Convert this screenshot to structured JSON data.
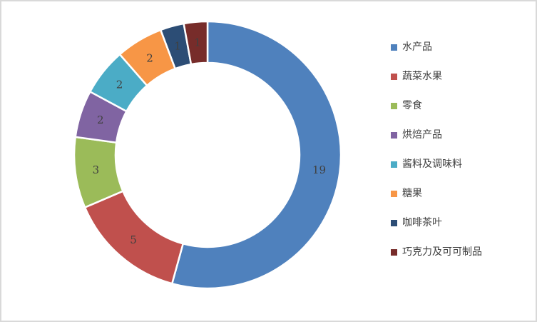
{
  "frame": {
    "border_color": "#d9d9d9",
    "background": "#ffffff"
  },
  "chart_data": {
    "type": "pie",
    "subtype": "donut",
    "title": "",
    "legend_position": "right",
    "direction": "clockwise",
    "start_angle_deg": 0,
    "inner_radius_ratio": 0.69,
    "total": 35,
    "label_color": "#404040",
    "legend_text_color": "#3f3f3f",
    "segments": [
      {
        "label": "水产品",
        "value": 19,
        "color": "#4F81BD"
      },
      {
        "label": "蔬菜水果",
        "value": 5,
        "color": "#C0504D"
      },
      {
        "label": "零食",
        "value": 3,
        "color": "#9BBB59"
      },
      {
        "label": "烘焙产品",
        "value": 2,
        "color": "#8064A2"
      },
      {
        "label": "酱料及调味料",
        "value": 2,
        "color": "#4BACC6"
      },
      {
        "label": "糖果",
        "value": 2,
        "color": "#F79646"
      },
      {
        "label": "咖啡茶叶",
        "value": 1,
        "color": "#2C4D75"
      },
      {
        "label": "巧克力及可可制品",
        "value": 1,
        "color": "#772C2A"
      }
    ]
  }
}
